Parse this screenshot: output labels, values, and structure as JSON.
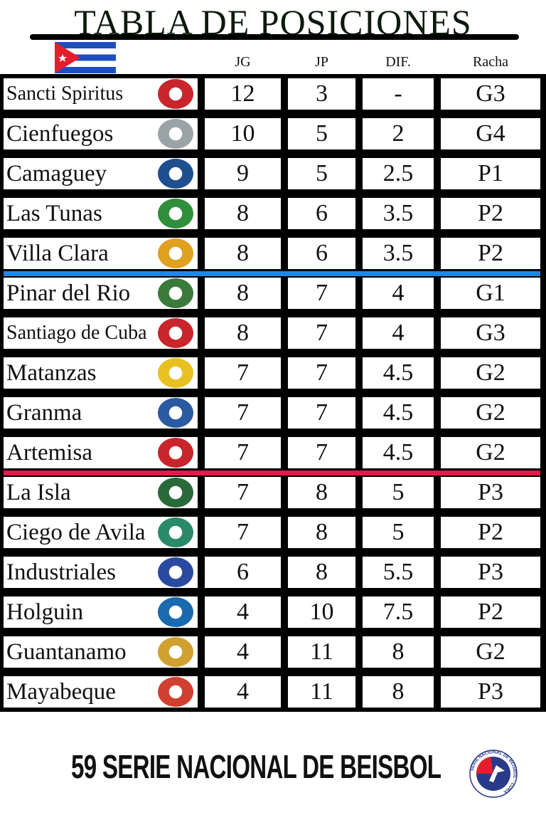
{
  "title": "TABLA DE POSICIONES",
  "columns": [
    "JG",
    "JP",
    "DIF.",
    "Racha"
  ],
  "rows": [
    {
      "team": "Sancti Spiritus",
      "jg": "12",
      "jp": "3",
      "dif": "-",
      "racha": "G3",
      "logo_color": "#c8262c"
    },
    {
      "team": "Cienfuegos",
      "jg": "10",
      "jp": "5",
      "dif": "2",
      "racha": "G4",
      "logo_color": "#9aa3a6"
    },
    {
      "team": "Camaguey",
      "jg": "9",
      "jp": "5",
      "dif": "2.5",
      "racha": "P1",
      "logo_color": "#1e4f8f"
    },
    {
      "team": "Las Tunas",
      "jg": "8",
      "jp": "6",
      "dif": "3.5",
      "racha": "P2",
      "logo_color": "#2f8f3a"
    },
    {
      "team": "Villa Clara",
      "jg": "8",
      "jp": "6",
      "dif": "3.5",
      "racha": "P2",
      "logo_color": "#e0a020"
    },
    {
      "team": "Pinar del Rio",
      "jg": "8",
      "jp": "7",
      "dif": "4",
      "racha": "G1",
      "logo_color": "#3a7a3a"
    },
    {
      "team": "Santiago de Cuba",
      "jg": "8",
      "jp": "7",
      "dif": "4",
      "racha": "G3",
      "logo_color": "#c8262c"
    },
    {
      "team": "Matanzas",
      "jg": "7",
      "jp": "7",
      "dif": "4.5",
      "racha": "G2",
      "logo_color": "#e8c020"
    },
    {
      "team": "Granma",
      "jg": "7",
      "jp": "7",
      "dif": "4.5",
      "racha": "G2",
      "logo_color": "#2a5aa0"
    },
    {
      "team": "Artemisa",
      "jg": "7",
      "jp": "7",
      "dif": "4.5",
      "racha": "G2",
      "logo_color": "#c8262c"
    },
    {
      "team": "La Isla",
      "jg": "7",
      "jp": "8",
      "dif": "5",
      "racha": "P3",
      "logo_color": "#2a6a3a"
    },
    {
      "team": "Ciego de Avila",
      "jg": "7",
      "jp": "8",
      "dif": "5",
      "racha": "P2",
      "logo_color": "#2a8a6a"
    },
    {
      "team": "Industriales",
      "jg": "6",
      "jp": "8",
      "dif": "5.5",
      "racha": "P3",
      "logo_color": "#2a4aa0"
    },
    {
      "team": "Holguin",
      "jg": "4",
      "jp": "10",
      "dif": "7.5",
      "racha": "P2",
      "logo_color": "#1a6ab0"
    },
    {
      "team": "Guantanamo",
      "jg": "4",
      "jp": "11",
      "dif": "8",
      "racha": "G2",
      "logo_color": "#d0a030"
    },
    {
      "team": "Mayabeque",
      "jg": "4",
      "jp": "11",
      "dif": "8",
      "racha": "P3",
      "logo_color": "#d04030"
    }
  ],
  "separators": {
    "after_row_5_color": "#1e88e5",
    "after_row_10_color": "#e8194a"
  },
  "footer": "59 SERIE NACIONAL DE BEISBOL",
  "footer_logo_text": "SERIE NACIONAL DE BEISBOL · CUBA"
}
